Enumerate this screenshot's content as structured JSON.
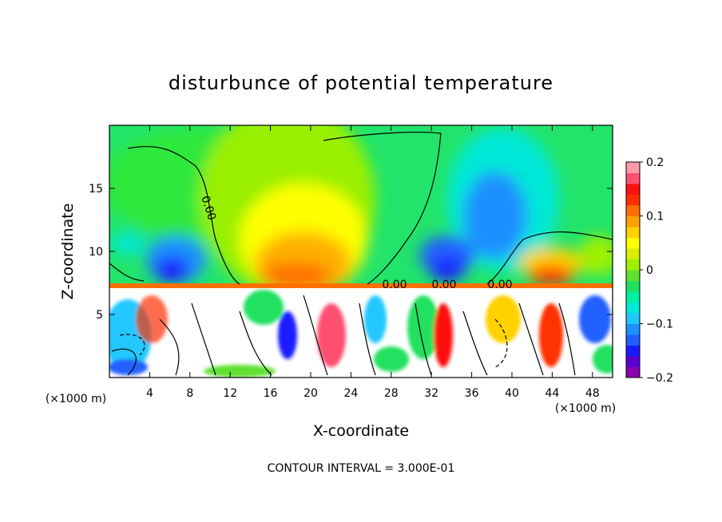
{
  "chart_data": {
    "type": "heatmap",
    "title": "disturbunce of potential temperature",
    "xlabel": "X-coordinate",
    "ylabel": "Z-coordinate",
    "x_unit": "(×1000 m)",
    "x_unit_right": "(×1000 m)",
    "footer": "CONTOUR INTERVAL = 3.000E-01",
    "xlim": [
      0,
      50
    ],
    "ylim": [
      0,
      20
    ],
    "x_ticks": [
      "4",
      "8",
      "12",
      "16",
      "20",
      "24",
      "28",
      "32",
      "36",
      "40",
      "44",
      "48"
    ],
    "x_tick_values": [
      4,
      8,
      12,
      16,
      20,
      24,
      28,
      32,
      36,
      40,
      44,
      48
    ],
    "y_ticks": [
      "5",
      "10",
      "15"
    ],
    "y_tick_values": [
      5,
      10,
      15
    ],
    "colorbar": {
      "min": -0.2,
      "max": 0.2,
      "tick_labels": [
        "0.2",
        "0.1",
        "0",
        "−0.1",
        "−0.2"
      ],
      "tick_values": [
        0.2,
        0.1,
        0,
        -0.1,
        -0.2
      ],
      "colors": [
        "#8b00b0",
        "#5a00d0",
        "#1a1aff",
        "#2060ff",
        "#1e90ff",
        "#20c8ff",
        "#00e8d8",
        "#00f0a0",
        "#20e060",
        "#60e030",
        "#a0f000",
        "#d8f000",
        "#ffff00",
        "#ffd200",
        "#ffa000",
        "#ff7000",
        "#ff3000",
        "#ff1010",
        "#ff5070",
        "#ff9aa8"
      ]
    },
    "contour_labels": [
      "0.00",
      "0.00",
      "0.00",
      "0.00"
    ]
  }
}
